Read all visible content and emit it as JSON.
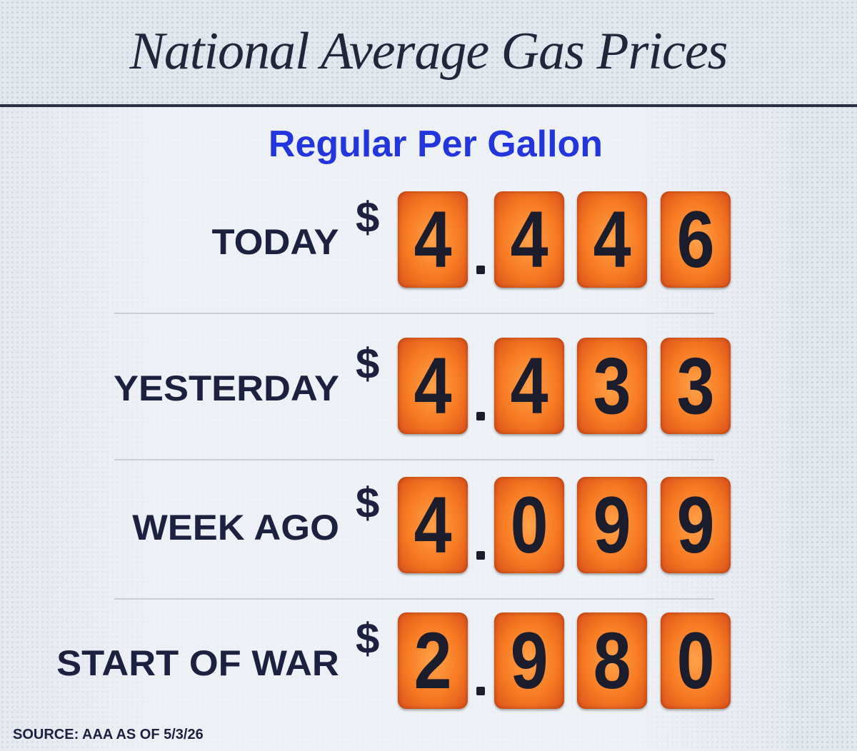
{
  "header": {
    "title": "National Average Gas Prices",
    "subtitle": "Regular Per Gallon"
  },
  "currency_symbol": "$",
  "rows": [
    {
      "label": "TODAY",
      "digits": [
        "4",
        "4",
        "4",
        "6"
      ]
    },
    {
      "label": "YESTERDAY",
      "digits": [
        "4",
        "4",
        "3",
        "3"
      ]
    },
    {
      "label": "WEEK AGO",
      "digits": [
        "4",
        "0",
        "9",
        "9"
      ]
    },
    {
      "label": "START OF WAR",
      "digits": [
        "2",
        "9",
        "8",
        "0"
      ]
    }
  ],
  "footer": {
    "source": "SOURCE: AAA AS OF 5/3/26"
  }
}
